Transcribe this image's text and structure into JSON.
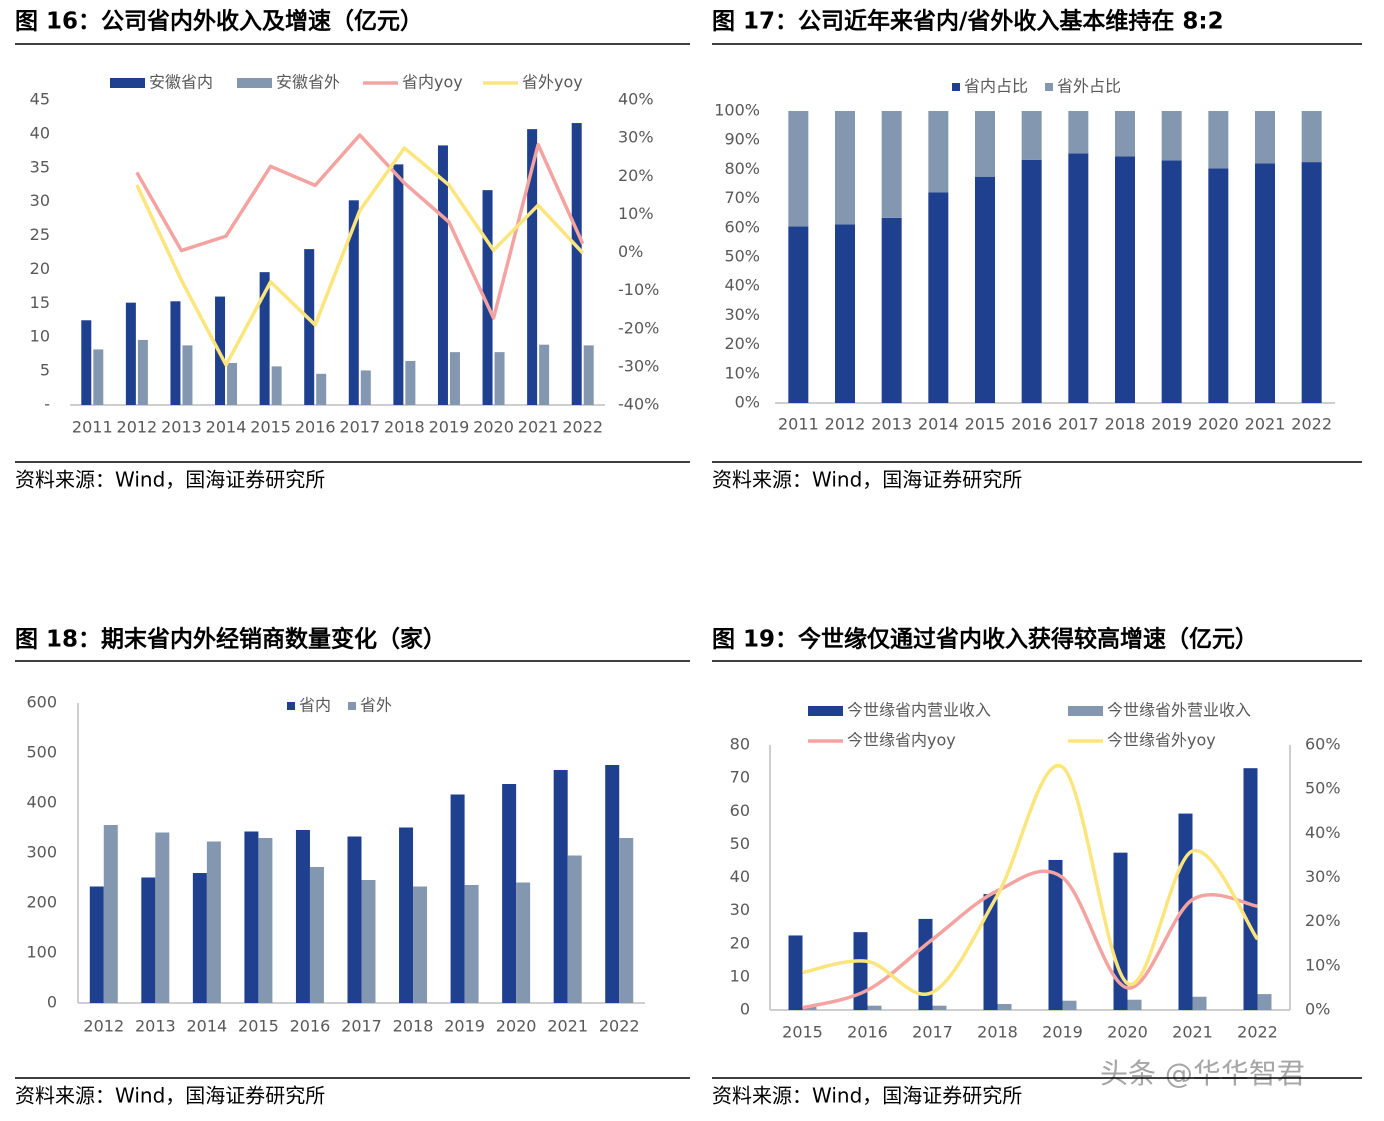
{
  "chart_data": [
    {
      "type": "combo",
      "title": "图 16：公司省内外收入及增速（亿元）",
      "source": "资料来源：Wind，国海证券研究所",
      "categories": [
        "2011",
        "2012",
        "2013",
        "2014",
        "2015",
        "2016",
        "2017",
        "2018",
        "2019",
        "2020",
        "2021",
        "2022"
      ],
      "series": [
        {
          "name": "安徽省内",
          "kind": "bar",
          "color": "#1f3f8f",
          "values": [
            12.5,
            15.1,
            15.3,
            16.0,
            19.6,
            23.0,
            30.2,
            35.5,
            38.3,
            31.7,
            40.7,
            41.6
          ]
        },
        {
          "name": "安徽省外",
          "kind": "bar",
          "color": "#8497b0",
          "values": [
            8.2,
            9.6,
            8.8,
            6.2,
            5.7,
            4.6,
            5.1,
            6.5,
            7.8,
            7.8,
            8.9,
            8.8
          ]
        },
        {
          "name": "省内yoy",
          "kind": "line",
          "axis": "y2",
          "color": "#f4a3a0",
          "values": [
            null,
            21,
            0.5,
            4.3,
            22.6,
            17.6,
            30.8,
            18.2,
            8,
            -17.2,
            28.3,
            2.3
          ]
        },
        {
          "name": "省外yoy",
          "kind": "line",
          "axis": "y2",
          "color": "#fbe57c",
          "values": [
            null,
            17.7,
            -7.3,
            -29.5,
            -7.7,
            -19,
            11,
            27.4,
            17.7,
            0.6,
            12.4,
            -0.1
          ]
        }
      ],
      "ylim": [
        0,
        45
      ],
      "yticks": [
        {
          "value": 0,
          "label": "-"
        },
        5,
        10,
        15,
        20,
        25,
        30,
        35,
        40,
        45
      ],
      "y2lim": [
        -40,
        40
      ],
      "y2ticks": [
        {
          "value": -40,
          "label": "-40%"
        },
        {
          "value": -30,
          "label": "-30%"
        },
        {
          "value": -20,
          "label": "-20%"
        },
        {
          "value": -10,
          "label": "-10%"
        },
        {
          "value": 0,
          "label": "0%"
        },
        {
          "value": 10,
          "label": "10%"
        },
        {
          "value": 20,
          "label": "20%"
        },
        {
          "value": 30,
          "label": "30%"
        },
        {
          "value": 40,
          "label": "40%"
        }
      ]
    },
    {
      "type": "stacked_bar",
      "title": "图 17：公司近年来省内/省外收入基本维持在 8:2",
      "source": "资料来源：Wind，国海证券研究所",
      "categories": [
        "2011",
        "2012",
        "2013",
        "2014",
        "2015",
        "2016",
        "2017",
        "2018",
        "2019",
        "2020",
        "2021",
        "2022"
      ],
      "series": [
        {
          "name": "省内占比",
          "color": "#1f3f8f",
          "values": [
            60.5,
            61.2,
            63.4,
            72.1,
            77.5,
            83.3,
            85.5,
            84.5,
            83.1,
            80.3,
            82.1,
            82.5
          ]
        },
        {
          "name": "省外占比",
          "color": "#8497b0",
          "values": [
            39.5,
            38.8,
            36.6,
            27.9,
            22.5,
            16.7,
            14.5,
            15.5,
            16.9,
            19.7,
            17.9,
            17.5
          ]
        }
      ],
      "ylim": [
        0,
        100
      ],
      "yticks": [
        {
          "value": 0,
          "label": "0%"
        },
        {
          "value": 10,
          "label": "10%"
        },
        {
          "value": 20,
          "label": "20%"
        },
        {
          "value": 30,
          "label": "30%"
        },
        {
          "value": 40,
          "label": "40%"
        },
        {
          "value": 50,
          "label": "50%"
        },
        {
          "value": 60,
          "label": "60%"
        },
        {
          "value": 70,
          "label": "70%"
        },
        {
          "value": 80,
          "label": "80%"
        },
        {
          "value": 90,
          "label": "90%"
        },
        {
          "value": 100,
          "label": "100%"
        }
      ]
    },
    {
      "type": "bar",
      "title": "图 18：期末省内外经销商数量变化（家）",
      "source": "资料来源：Wind，国海证券研究所",
      "categories": [
        "2012",
        "2013",
        "2014",
        "2015",
        "2016",
        "2017",
        "2018",
        "2019",
        "2020",
        "2021",
        "2022"
      ],
      "series": [
        {
          "name": "省内",
          "color": "#1f3f8f",
          "values": [
            233,
            251,
            260,
            343,
            346,
            333,
            351,
            417,
            438,
            466,
            476
          ]
        },
        {
          "name": "省外",
          "color": "#8497b0",
          "values": [
            356,
            341,
            323,
            330,
            272,
            246,
            233,
            236,
            241,
            295,
            330
          ]
        }
      ],
      "ylim": [
        0,
        600
      ],
      "yticks": [
        0,
        100,
        200,
        300,
        400,
        500,
        600
      ]
    },
    {
      "type": "combo",
      "smooth": true,
      "title": "图 19：今世缘仅通过省内收入获得较高增速（亿元）",
      "source": "资料来源：Wind，国海证券研究所",
      "categories": [
        "2015",
        "2016",
        "2017",
        "2018",
        "2019",
        "2020",
        "2021",
        "2022"
      ],
      "series": [
        {
          "name": "今世缘省内营业收入",
          "kind": "bar",
          "color": "#1f3f8f",
          "values": [
            22.5,
            23.5,
            27.5,
            35,
            45.3,
            47.5,
            59.3,
            73
          ]
        },
        {
          "name": "今世缘省外营业收入",
          "kind": "bar",
          "color": "#8497b0",
          "values": [
            1.0,
            1.3,
            1.3,
            1.8,
            2.8,
            3.1,
            4.0,
            4.8
          ]
        },
        {
          "name": "今世缘省内yoy",
          "kind": "line",
          "axis": "y2",
          "color": "#f4a3a0",
          "values": [
            0.5,
            4.5,
            16,
            27,
            30,
            5,
            25,
            23.5
          ]
        },
        {
          "name": "今世缘省外yoy",
          "kind": "line",
          "axis": "y2",
          "color": "#fbe57c",
          "values": [
            8.5,
            11,
            4,
            26,
            55,
            6,
            36,
            16
          ]
        }
      ],
      "ylim": [
        0,
        80
      ],
      "yticks": [
        0,
        10,
        20,
        30,
        40,
        50,
        60,
        70,
        80
      ],
      "y2lim": [
        0,
        60
      ],
      "y2ticks": [
        {
          "value": 0,
          "label": "0%"
        },
        {
          "value": 10,
          "label": "10%"
        },
        {
          "value": 20,
          "label": "20%"
        },
        {
          "value": 30,
          "label": "30%"
        },
        {
          "value": 40,
          "label": "40%"
        },
        {
          "value": 50,
          "label": "50%"
        },
        {
          "value": 60,
          "label": "60%"
        }
      ]
    }
  ],
  "watermark": "头条 @华华智君"
}
